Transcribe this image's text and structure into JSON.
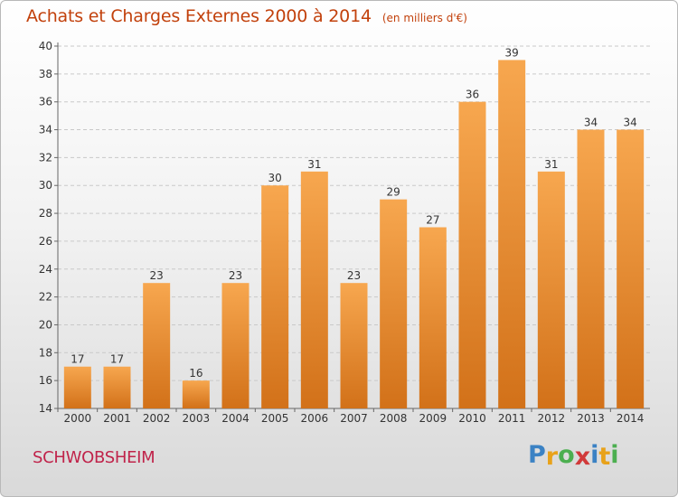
{
  "header": {
    "title": "Achats et Charges Externes 2000 à 2014",
    "subtitle": "(en milliers d'€)"
  },
  "footer": {
    "commune": "SCHWOBSHEIM",
    "logo_letters": [
      "P",
      "r",
      "o",
      "x",
      "i",
      "t",
      "i"
    ],
    "logo_colors": [
      "#3b82c4",
      "#e8a21a",
      "#4caf50",
      "#d13a3a",
      "#3b82c4",
      "#e8a21a",
      "#4caf50"
    ]
  },
  "colors": {
    "bar_light": "#f7a74f",
    "bar_dark": "#d27119",
    "title": "#c2410c"
  },
  "chart_data": {
    "type": "bar",
    "categories": [
      "2000",
      "2001",
      "2002",
      "2003",
      "2004",
      "2005",
      "2006",
      "2007",
      "2008",
      "2009",
      "2010",
      "2011",
      "2012",
      "2013",
      "2014"
    ],
    "values": [
      17,
      17,
      23,
      16,
      23,
      30,
      31,
      23,
      29,
      27,
      36,
      39,
      31,
      34,
      34
    ],
    "data_labels": [
      "17",
      "17",
      "23",
      "16",
      "23",
      "30",
      "31",
      "23",
      "29",
      "27",
      "36",
      "39",
      "31",
      "34",
      "34"
    ],
    "y_ticks": [
      "14",
      "16",
      "18",
      "20",
      "22",
      "24",
      "26",
      "28",
      "30",
      "32",
      "34",
      "36",
      "38",
      "40"
    ],
    "ylim": [
      14,
      40
    ],
    "grid": "horizontal",
    "legend": "none",
    "title": "Achats et Charges Externes 2000 à 2014",
    "xlabel": "",
    "ylabel": ""
  }
}
